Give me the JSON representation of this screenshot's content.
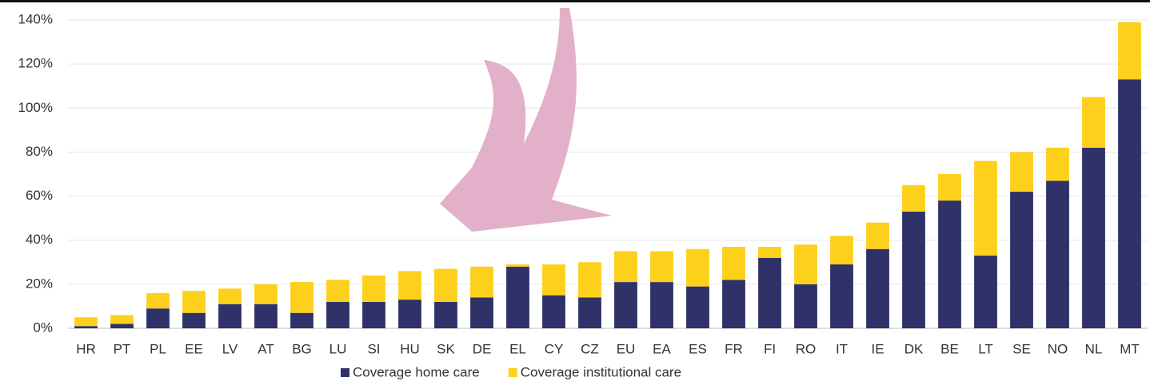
{
  "chart_data": {
    "type": "stacked_bar",
    "categories": [
      "HR",
      "PT",
      "PL",
      "EE",
      "LV",
      "AT",
      "BG",
      "LU",
      "SI",
      "HU",
      "SK",
      "DE",
      "EL",
      "CY",
      "CZ",
      "EU",
      "EA",
      "ES",
      "FR",
      "FI",
      "RO",
      "IT",
      "IE",
      "DK",
      "BE",
      "LT",
      "SE",
      "NO",
      "NL",
      "MT"
    ],
    "series": [
      {
        "name": "Coverage home care",
        "color": "#2e3268",
        "values": [
          1,
          2,
          9,
          7,
          11,
          11,
          7,
          12,
          12,
          13,
          12,
          14,
          28,
          15,
          14,
          21,
          21,
          19,
          22,
          32,
          20,
          29,
          36,
          53,
          58,
          33,
          62,
          67,
          82,
          113
        ]
      },
      {
        "name": "Coverage institutional care",
        "color": "#fdd01c",
        "values": [
          4,
          4,
          7,
          10,
          7,
          9,
          14,
          10,
          12,
          13,
          15,
          14,
          1,
          14,
          16,
          14,
          14,
          17,
          15,
          5,
          18,
          13,
          12,
          12,
          12,
          43,
          18,
          15,
          23,
          26
        ]
      }
    ],
    "ylim": [
      0,
      140
    ],
    "yticks": [
      {
        "value": 0,
        "label": "0%"
      },
      {
        "value": 20,
        "label": "20%"
      },
      {
        "value": 40,
        "label": "40%"
      },
      {
        "value": 60,
        "label": "60%"
      },
      {
        "value": 80,
        "label": "80%"
      },
      {
        "value": 100,
        "label": "100%"
      },
      {
        "value": 120,
        "label": "120%"
      },
      {
        "value": 140,
        "label": "140%"
      }
    ],
    "grid": true
  }
}
